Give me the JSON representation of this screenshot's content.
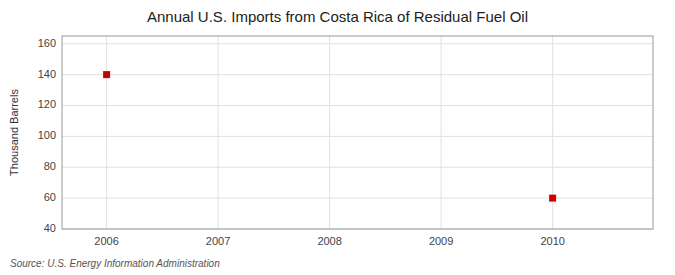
{
  "chart_data": {
    "type": "scatter",
    "title": "Annual U.S. Imports from Costa Rica of Residual Fuel Oil",
    "ylabel": "Thousand Barrels",
    "source": "Source: U.S. Energy Information Administration",
    "x": [
      2006,
      2010
    ],
    "values": [
      140,
      60
    ],
    "color": "#cc0000",
    "marker": "square",
    "xlim": [
      2005.6,
      2010.9
    ],
    "ylim": [
      40,
      165
    ],
    "xticks": [
      2006,
      2007,
      2008,
      2009,
      2010
    ],
    "yticks": [
      40,
      60,
      80,
      100,
      120,
      140,
      160
    ],
    "grid": true
  }
}
